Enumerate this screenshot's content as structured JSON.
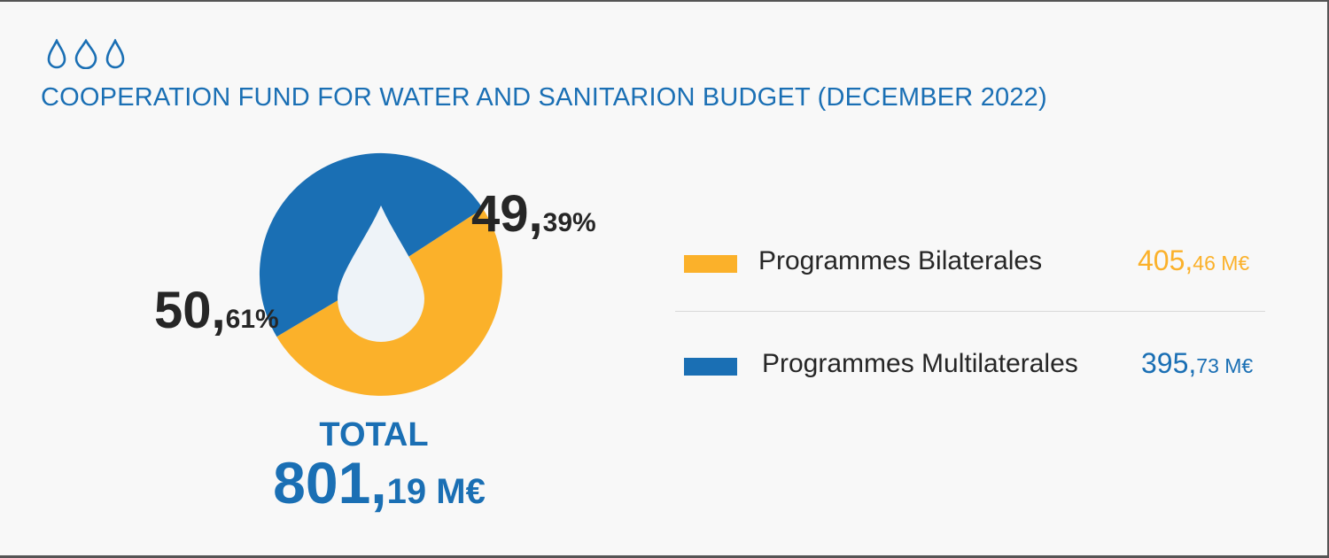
{
  "title": "COOPERATION FUND FOR WATER AND SANITARION BUDGET (DECEMBER 2022)",
  "header_icons": [
    "water-drop-icon",
    "water-drop-icon",
    "water-drop-icon"
  ],
  "colors": {
    "bilateral": "#fbb12a",
    "multilateral": "#1a6fb4",
    "title": "#1a6fb4",
    "drop": "#eef3f8"
  },
  "chart_data": {
    "type": "pie",
    "title": "COOPERATION FUND FOR WATER AND SANITARION BUDGET (DECEMBER 2022)",
    "slices": [
      {
        "label": "Programmes Bilaterales",
        "value": 405.46,
        "percent": 50.61,
        "percent_main": "50,",
        "percent_small": "61%",
        "amount_main": "405,",
        "amount_small": "46 M€"
      },
      {
        "label": "Programmes Multilaterales",
        "value": 395.73,
        "percent": 49.39,
        "percent_main": "49,",
        "percent_small": "39%",
        "amount_main": "395,",
        "amount_small": "73 M€"
      }
    ],
    "total": {
      "label": "TOTAL",
      "value": 801.19,
      "main": "801,",
      "small": "19 M€"
    }
  }
}
